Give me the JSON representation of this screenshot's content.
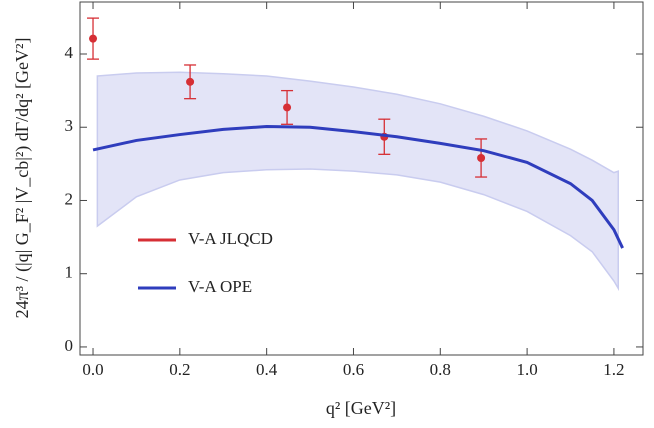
{
  "chart_data": {
    "type": "scatter",
    "xlabel": "q² [GeV²]",
    "ylabel": "24π³ / (|q| G_F² |V_cb|²) dΓ/dq² [GeV²]",
    "xlim": [
      -0.03,
      1.267
    ],
    "ylim": [
      -0.11,
      4.71
    ],
    "xticks": [
      {
        "value": 0,
        "label": "0.0"
      },
      0.2,
      0.4,
      0.6,
      0.8,
      {
        "value": 1,
        "label": "1.0"
      },
      1.2
    ],
    "yticks": [
      0,
      1,
      2,
      3,
      4
    ],
    "legend": "center-left",
    "band": {
      "color": "#e3e4f7",
      "edge": "#c9ccef",
      "x": [
        0.01,
        0.1,
        0.2,
        0.3,
        0.4,
        0.5,
        0.6,
        0.7,
        0.8,
        0.9,
        1.0,
        1.1,
        1.15,
        1.2,
        1.21
      ],
      "upper": [
        3.7,
        3.74,
        3.75,
        3.73,
        3.7,
        3.63,
        3.55,
        3.45,
        3.32,
        3.15,
        2.95,
        2.7,
        2.55,
        2.38,
        2.4
      ],
      "lower": [
        1.65,
        2.05,
        2.28,
        2.38,
        2.42,
        2.43,
        2.4,
        2.35,
        2.25,
        2.08,
        1.85,
        1.52,
        1.3,
        0.9,
        0.8
      ]
    },
    "series": [
      {
        "name": "V-A JLQCD",
        "color": "#d62f35",
        "mark": "points",
        "x": [
          0,
          0.2236,
          0.447,
          0.671,
          0.894
        ],
        "values": [
          4.21,
          3.62,
          3.27,
          2.87,
          2.58
        ],
        "errors": [
          0.28,
          0.23,
          0.23,
          0.24,
          0.26
        ]
      },
      {
        "name": "V-A OPE",
        "color": "#2f3dbd",
        "mark": "line",
        "x": [
          0,
          0.1,
          0.2,
          0.3,
          0.4,
          0.5,
          0.6,
          0.7,
          0.8,
          0.9,
          1.0,
          1.1,
          1.15,
          1.2,
          1.22
        ],
        "values": [
          2.69,
          2.82,
          2.9,
          2.97,
          3.01,
          3.0,
          2.94,
          2.87,
          2.78,
          2.68,
          2.52,
          2.23,
          2.0,
          1.6,
          1.35
        ]
      }
    ]
  }
}
